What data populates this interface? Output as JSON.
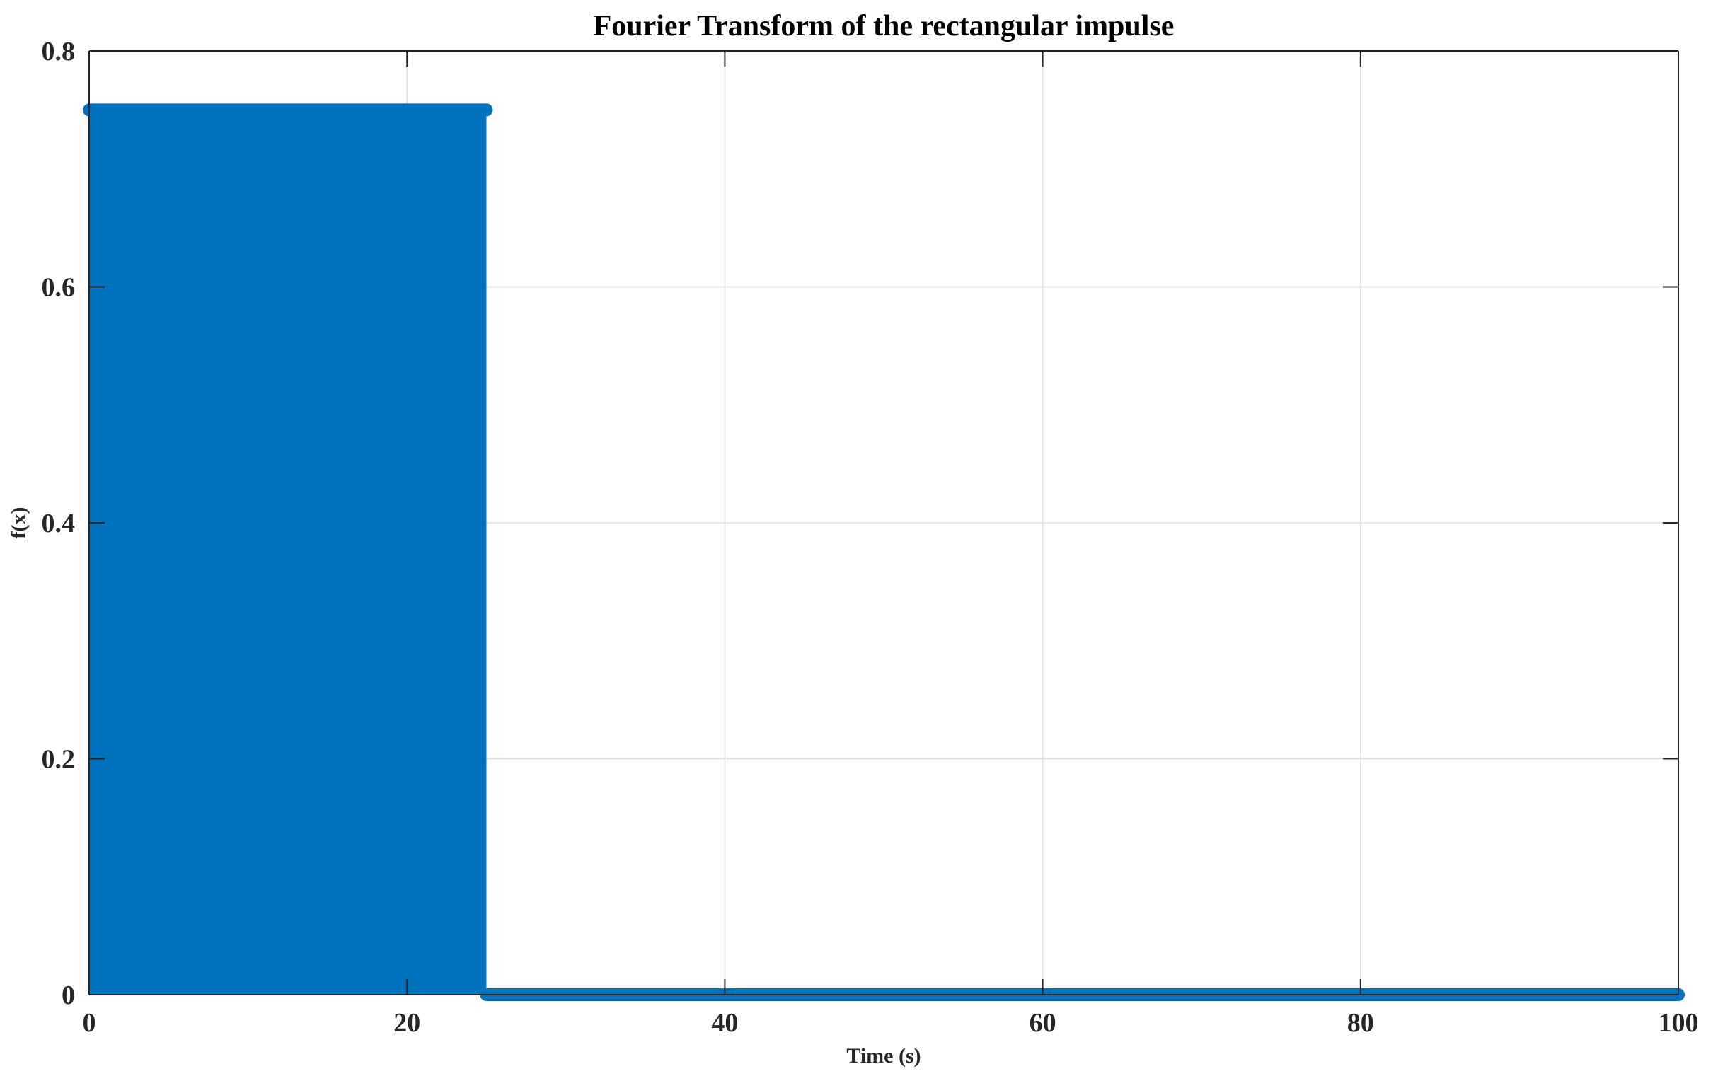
{
  "chart_data": {
    "type": "line",
    "title": "Fourier Transform of the rectangular impulse",
    "xlabel": "Time (s)",
    "ylabel": "f(x)",
    "xlim": [
      0,
      100
    ],
    "ylim": [
      0,
      0.8
    ],
    "xticks": [
      0,
      20,
      40,
      60,
      80,
      100
    ],
    "yticks": [
      0,
      0.2,
      0.4,
      0.6,
      0.8
    ],
    "xtick_labels": [
      "0",
      "20",
      "40",
      "60",
      "80",
      "100"
    ],
    "ytick_labels": [
      "0",
      "0.2",
      "0.4",
      "0.6",
      "0.8"
    ],
    "grid": true,
    "series": [
      {
        "color": "#0072BD",
        "marker": "dot",
        "x_start": 0,
        "x_end": 100,
        "x_step": 0.1,
        "pulse_end": 25,
        "high_value": 0.75,
        "low_value": 0
      }
    ]
  }
}
